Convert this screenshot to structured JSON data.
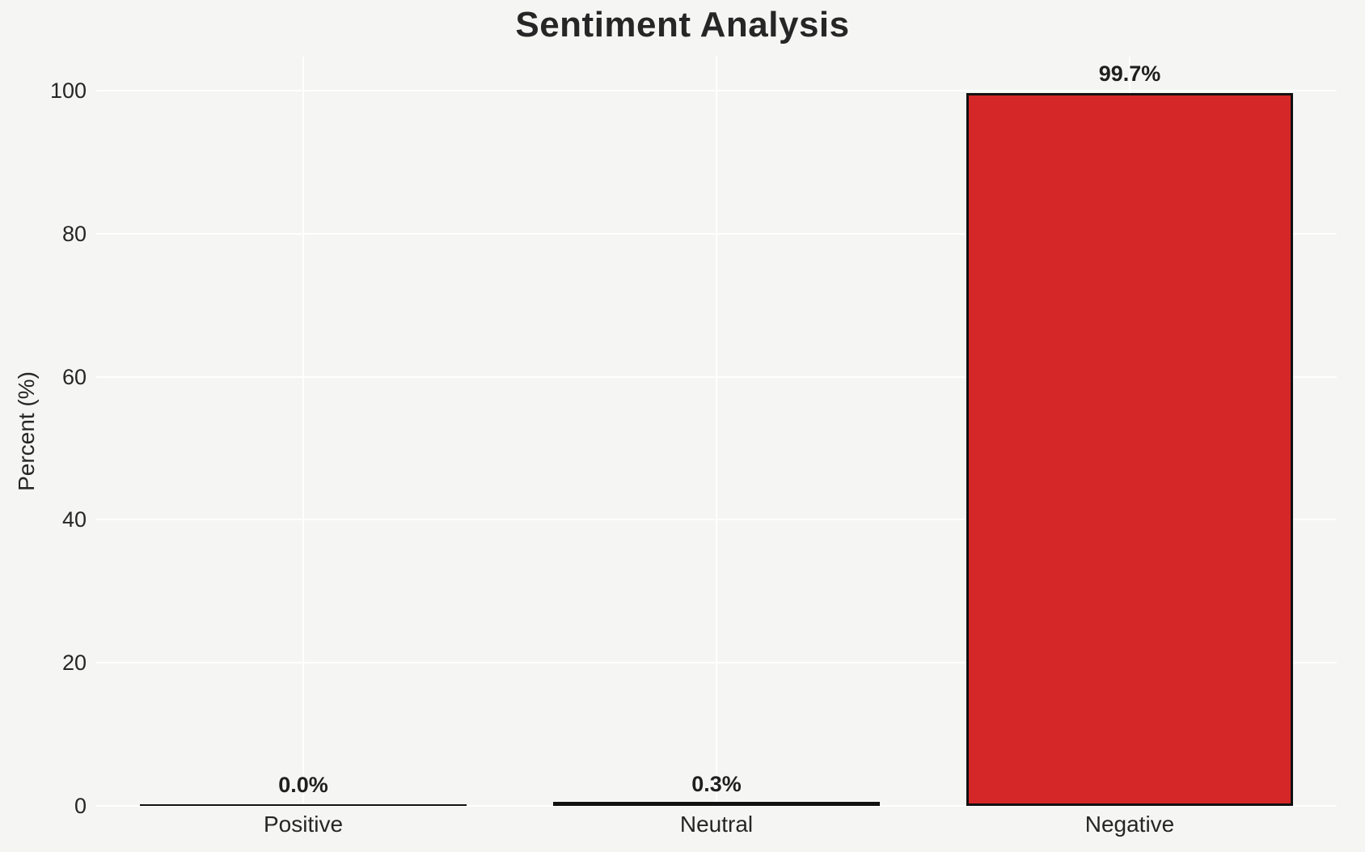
{
  "chart_data": {
    "type": "bar",
    "title": "Sentiment Analysis",
    "categories": [
      "Positive",
      "Neutral",
      "Negative"
    ],
    "values": [
      0.0,
      0.3,
      99.7
    ],
    "value_labels": [
      "0.0%",
      "0.3%",
      "99.7%"
    ],
    "xlabel": "",
    "ylabel": "Percent (%)",
    "ylim": [
      0,
      104.7
    ],
    "yticks": [
      0,
      20,
      40,
      60,
      80,
      100
    ],
    "grid": true,
    "gridlines": "white horizontal at each ytick and vertical at each category center",
    "legend": false,
    "bar_color": "#d62728",
    "bar_edge_color": "#111111",
    "background_color": "#f5f5f4",
    "grid_color": "#ffffff",
    "text_color": "#262626"
  }
}
